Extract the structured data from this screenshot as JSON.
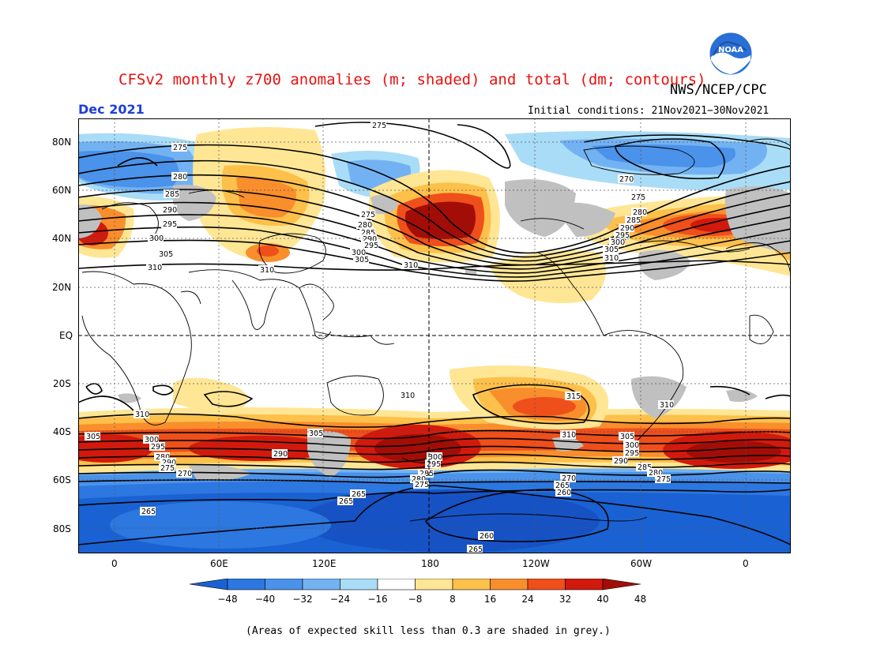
{
  "title": "CFSv2 monthly z700 anomalies (m; shaded) and total (dm; contours)",
  "organization": "NWS/NCEP/CPC",
  "logo_text": "NOAA",
  "valid_month": "Dec 2021",
  "initial_conditions": "Initial conditions: 21Nov2021−30Nov2021",
  "footnote": "(Areas of expected skill less than 0.3 are shaded in grey.)",
  "map": {
    "lat_labels": [
      "80N",
      "60N",
      "40N",
      "20N",
      "EQ",
      "20S",
      "40S",
      "60S",
      "80S"
    ],
    "lon_labels": [
      "0",
      "60E",
      "120E",
      "180",
      "120W",
      "60W",
      "0"
    ],
    "contour_labels": [
      "275",
      "280",
      "285",
      "290",
      "295",
      "300",
      "305",
      "310",
      "315",
      "270",
      "265",
      "260"
    ]
  },
  "colorbar": {
    "ticks": [
      "−48",
      "−40",
      "−32",
      "−24",
      "−16",
      "−8",
      "8",
      "16",
      "24",
      "32",
      "40",
      "48"
    ],
    "colors": [
      "#1a62d3",
      "#2c77e0",
      "#4a92ea",
      "#73b2f2",
      "#a9dcf7",
      "#ffffff",
      "#ffe695",
      "#fdc04a",
      "#f98e2c",
      "#ef4f1b",
      "#d11a0d",
      "#a30d07"
    ]
  },
  "colors": {
    "title": "#e8110f",
    "month": "#1d3fd6",
    "skill_grey": "#c0c0c0"
  }
}
